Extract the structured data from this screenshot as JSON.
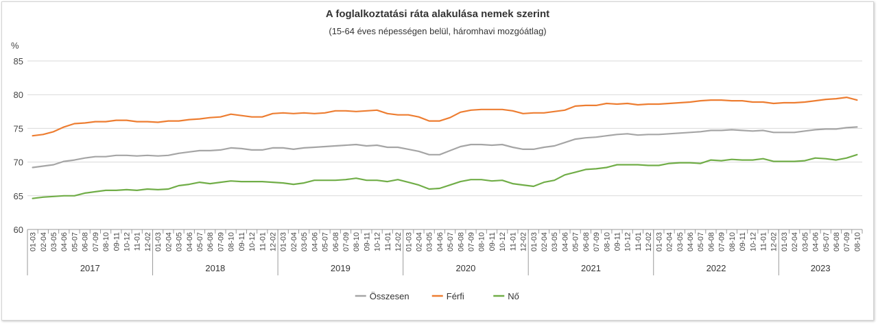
{
  "chart_data": {
    "type": "line",
    "title": "A foglalkoztatási ráta alakulása nemek szerint",
    "subtitle": "(15-64 éves népességen belül, háromhavi mozgóátlag)",
    "ylabel": "%",
    "ylim": [
      60,
      85
    ],
    "yticks": [
      60,
      65,
      70,
      75,
      80,
      85
    ],
    "grid": "horizontal",
    "legend_position": "bottom-center",
    "x": [
      "01-03",
      "02-04",
      "03-05",
      "04-06",
      "05-07",
      "06-08",
      "07-09",
      "08-10",
      "09-11",
      "10-12",
      "11-01",
      "12-02",
      "01-03",
      "02-04",
      "03-05",
      "04-06",
      "05-07",
      "06-08",
      "07-09",
      "08-10",
      "09-11",
      "10-12",
      "11-01",
      "12-02",
      "01-03",
      "02-04",
      "03-05",
      "04-06",
      "05-07",
      "06-08",
      "07-09",
      "08-10",
      "09-11",
      "10-12",
      "11-01",
      "12-02",
      "01-03",
      "02-04",
      "03-05",
      "04-06",
      "05-07",
      "06-08",
      "07-09",
      "08-10",
      "09-11",
      "10-12",
      "11-01",
      "12-02",
      "01-03",
      "02-04",
      "03-05",
      "04-06",
      "05-07",
      "06-08",
      "07-09",
      "08-10",
      "09-11",
      "10-12",
      "11-01",
      "12-02",
      "01-03",
      "02-04",
      "03-05",
      "04-06",
      "05-07",
      "06-08",
      "07-09",
      "08-10",
      "09-11",
      "10-12",
      "11-01",
      "12-02",
      "01-03",
      "02-04",
      "03-05",
      "04-06",
      "05-07",
      "06-08",
      "07-09",
      "08-10"
    ],
    "years": [
      {
        "label": "2017",
        "count": 12
      },
      {
        "label": "2018",
        "count": 12
      },
      {
        "label": "2019",
        "count": 12
      },
      {
        "label": "2020",
        "count": 12
      },
      {
        "label": "2021",
        "count": 12
      },
      {
        "label": "2022",
        "count": 12
      },
      {
        "label": "2023",
        "count": 8
      }
    ],
    "series": [
      {
        "name": "Összesen",
        "color": "#a5a5a5",
        "values": [
          69.2,
          69.4,
          69.6,
          70.1,
          70.3,
          70.6,
          70.8,
          70.8,
          71.0,
          71.0,
          70.9,
          71.0,
          70.9,
          71.0,
          71.3,
          71.5,
          71.7,
          71.7,
          71.8,
          72.1,
          72.0,
          71.8,
          71.8,
          72.1,
          72.1,
          71.9,
          72.1,
          72.2,
          72.3,
          72.4,
          72.5,
          72.6,
          72.4,
          72.5,
          72.2,
          72.2,
          71.9,
          71.6,
          71.1,
          71.1,
          71.7,
          72.3,
          72.6,
          72.6,
          72.5,
          72.6,
          72.2,
          71.9,
          71.9,
          72.2,
          72.4,
          72.9,
          73.4,
          73.6,
          73.7,
          73.9,
          74.1,
          74.2,
          74.0,
          74.1,
          74.1,
          74.2,
          74.3,
          74.4,
          74.5,
          74.7,
          74.7,
          74.8,
          74.7,
          74.6,
          74.7,
          74.4,
          74.4,
          74.4,
          74.6,
          74.8,
          74.9,
          74.9,
          75.1,
          75.2
        ]
      },
      {
        "name": "Férfi",
        "color": "#ed7d31",
        "values": [
          73.9,
          74.1,
          74.5,
          75.2,
          75.7,
          75.8,
          76.0,
          76.0,
          76.2,
          76.2,
          76.0,
          76.0,
          75.9,
          76.1,
          76.1,
          76.3,
          76.4,
          76.6,
          76.7,
          77.1,
          76.9,
          76.7,
          76.7,
          77.2,
          77.3,
          77.2,
          77.3,
          77.2,
          77.3,
          77.6,
          77.6,
          77.5,
          77.6,
          77.7,
          77.2,
          77.0,
          77.0,
          76.7,
          76.1,
          76.1,
          76.6,
          77.4,
          77.7,
          77.8,
          77.8,
          77.8,
          77.6,
          77.2,
          77.3,
          77.3,
          77.5,
          77.7,
          78.3,
          78.4,
          78.4,
          78.7,
          78.6,
          78.7,
          78.5,
          78.6,
          78.6,
          78.7,
          78.8,
          78.9,
          79.1,
          79.2,
          79.2,
          79.1,
          79.1,
          78.9,
          78.9,
          78.7,
          78.8,
          78.8,
          78.9,
          79.1,
          79.3,
          79.4,
          79.6,
          79.2
        ]
      },
      {
        "name": "Nő",
        "color": "#70ad47",
        "values": [
          64.6,
          64.8,
          64.9,
          65.0,
          65.0,
          65.4,
          65.6,
          65.8,
          65.8,
          65.9,
          65.8,
          66.0,
          65.9,
          66.0,
          66.5,
          66.7,
          67.0,
          66.8,
          67.0,
          67.2,
          67.1,
          67.1,
          67.1,
          67.0,
          66.9,
          66.7,
          66.9,
          67.3,
          67.3,
          67.3,
          67.4,
          67.6,
          67.3,
          67.3,
          67.1,
          67.4,
          67.0,
          66.6,
          66.0,
          66.1,
          66.6,
          67.1,
          67.4,
          67.4,
          67.2,
          67.3,
          66.8,
          66.6,
          66.4,
          67.0,
          67.3,
          68.1,
          68.5,
          68.9,
          69.0,
          69.2,
          69.6,
          69.6,
          69.6,
          69.5,
          69.5,
          69.8,
          69.9,
          69.9,
          69.8,
          70.3,
          70.2,
          70.4,
          70.3,
          70.3,
          70.5,
          70.1,
          70.1,
          70.1,
          70.2,
          70.6,
          70.5,
          70.3,
          70.6,
          71.1
        ]
      }
    ]
  }
}
